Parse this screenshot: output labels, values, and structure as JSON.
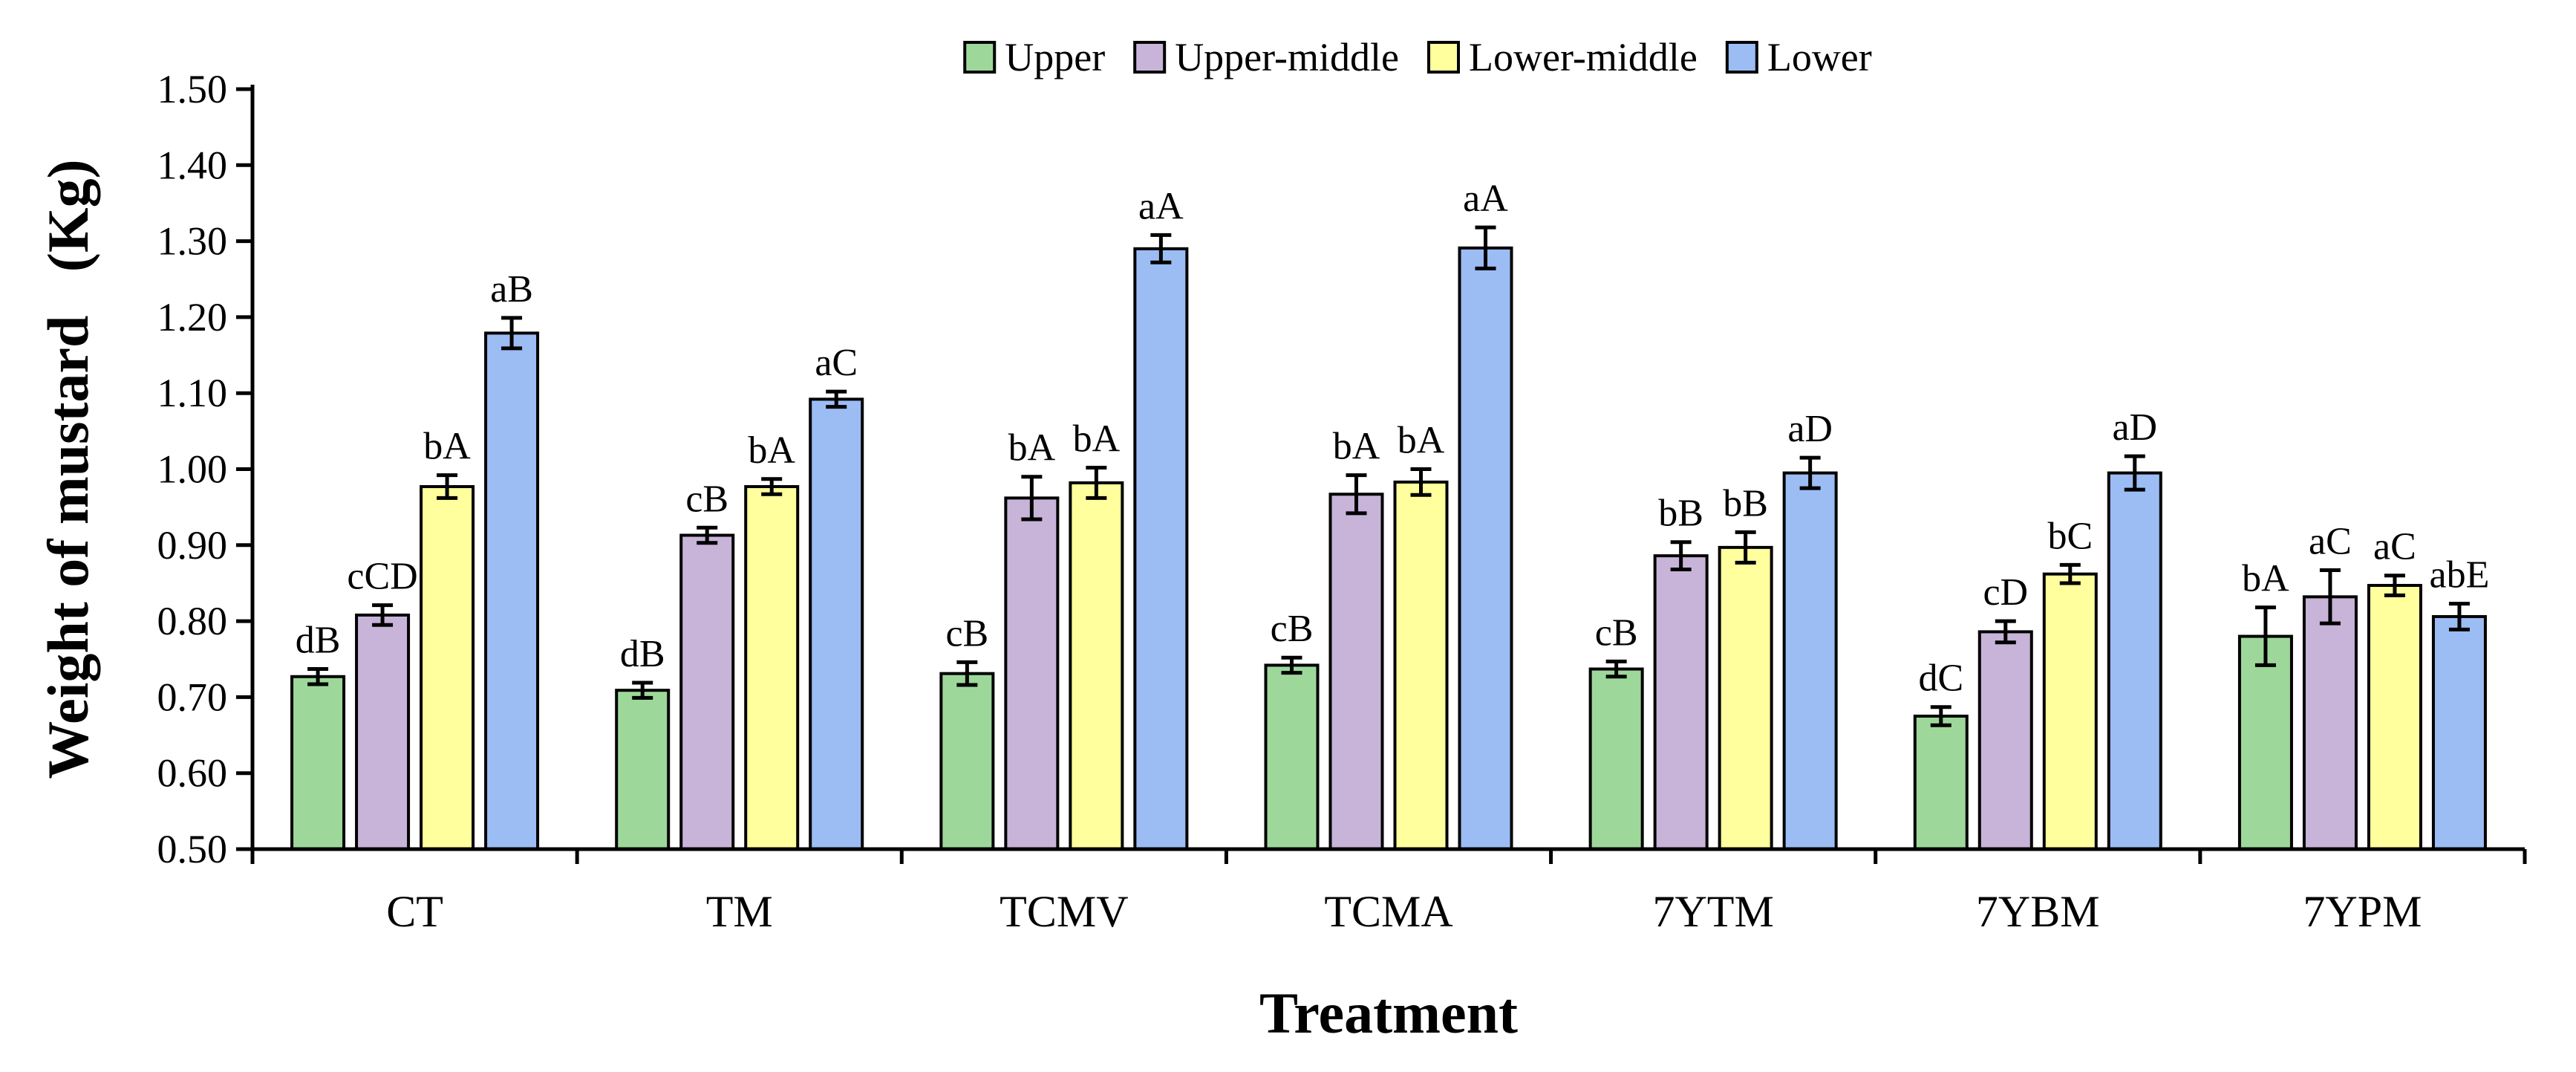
{
  "chart_data": {
    "type": "bar",
    "title": "",
    "xlabel": "Treatment",
    "ylabel": "Weight of mustard   (Kg)",
    "ylim": [
      0.5,
      1.5
    ],
    "ytick_step": 0.1,
    "ytick_labels": [
      "0.50",
      "0.60",
      "0.70",
      "0.80",
      "0.90",
      "1.00",
      "1.10",
      "1.20",
      "1.30",
      "1.40",
      "1.50"
    ],
    "legend_position": "top-center",
    "categories": [
      "CT",
      "TM",
      "TCMV",
      "TCMA",
      "7YTM",
      "7YBM",
      "7YPM"
    ],
    "series": [
      {
        "name": "Upper",
        "color": "#9dd89a",
        "values": [
          0.727,
          0.709,
          0.731,
          0.742,
          0.737,
          0.675,
          0.78
        ],
        "errors": [
          0.01,
          0.01,
          0.015,
          0.01,
          0.01,
          0.012,
          0.038
        ],
        "labels": [
          "dB",
          "dB",
          "cB",
          "cB",
          "cB",
          "dC",
          "bA"
        ]
      },
      {
        "name": "Upper-middle",
        "color": "#c8b4d8",
        "values": [
          0.808,
          0.913,
          0.962,
          0.967,
          0.886,
          0.786,
          0.832
        ],
        "errors": [
          0.013,
          0.01,
          0.028,
          0.025,
          0.018,
          0.014,
          0.035
        ],
        "labels": [
          "cCD",
          "cB",
          "bA",
          "bA",
          "bB",
          "cD",
          "aC"
        ]
      },
      {
        "name": "Lower-middle",
        "color": "#ffff9e",
        "values": [
          0.977,
          0.977,
          0.982,
          0.983,
          0.897,
          0.862,
          0.847
        ],
        "errors": [
          0.015,
          0.01,
          0.02,
          0.017,
          0.02,
          0.012,
          0.013
        ],
        "labels": [
          "bA",
          "bA",
          "bA",
          "bA",
          "bB",
          "bC",
          "aC"
        ]
      },
      {
        "name": "Lower",
        "color": "#9cbcf4",
        "values": [
          1.179,
          1.092,
          1.29,
          1.291,
          0.995,
          0.995,
          0.806
        ],
        "errors": [
          0.02,
          0.01,
          0.018,
          0.027,
          0.02,
          0.022,
          0.017
        ],
        "labels": [
          "aB",
          "aC",
          "aA",
          "aA",
          "aD",
          "aD",
          "abE"
        ]
      }
    ]
  }
}
